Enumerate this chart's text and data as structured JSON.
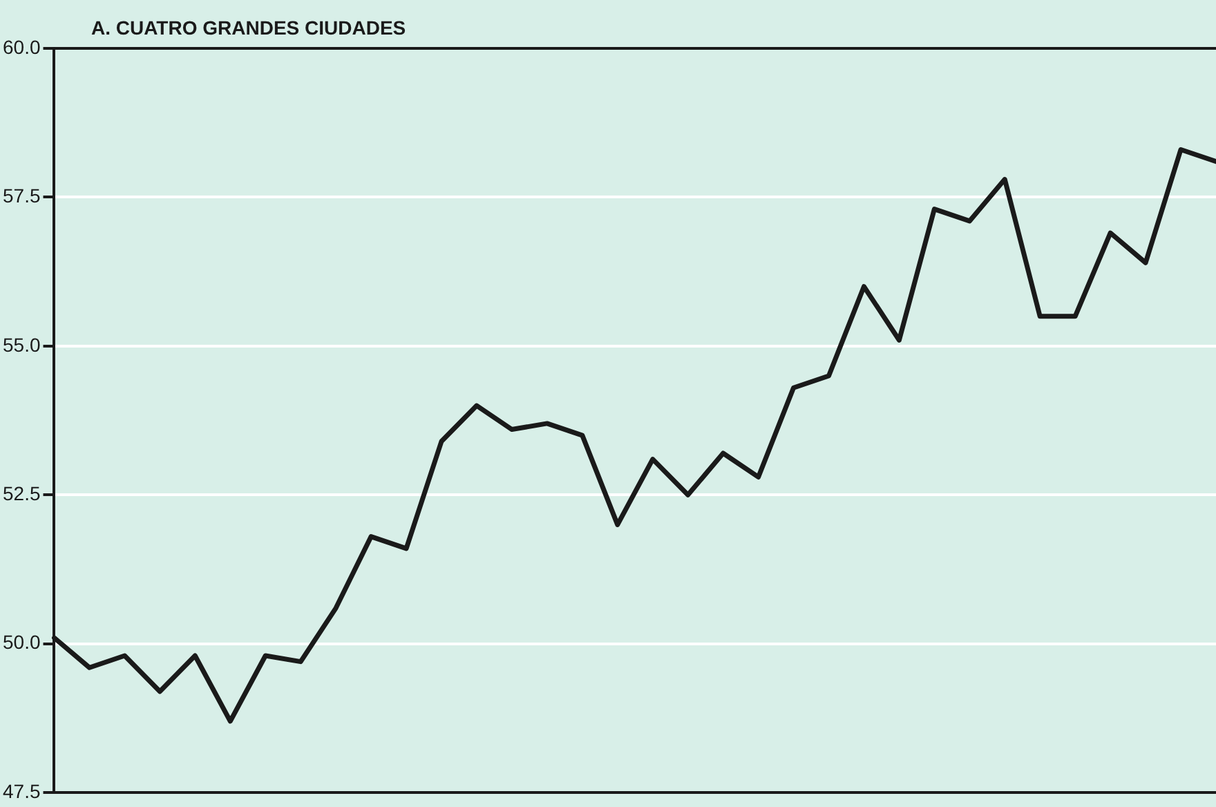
{
  "chart_data": {
    "type": "line",
    "title": "A. CUATRO GRANDES CIUDADES",
    "categories": [
      null,
      null,
      null,
      null,
      null,
      null,
      null,
      null,
      null,
      null,
      null,
      null,
      null,
      null,
      null,
      null,
      null,
      null,
      null,
      null,
      null,
      null,
      null,
      null,
      null,
      null,
      null,
      null,
      null,
      null,
      null,
      null,
      null,
      null
    ],
    "series": [
      {
        "color": "#1a1a1a",
        "values": [
          50.1,
          49.6,
          49.8,
          49.2,
          49.8,
          48.7,
          49.8,
          49.7,
          50.6,
          51.8,
          51.6,
          53.4,
          54.0,
          53.6,
          53.7,
          53.5,
          52.0,
          53.1,
          52.5,
          53.2,
          52.8,
          54.3,
          54.5,
          56.0,
          55.1,
          57.3,
          57.1,
          57.8,
          55.5,
          55.5,
          56.9,
          56.4,
          58.3,
          58.1
        ]
      }
    ],
    "ylim": [
      47.5,
      60
    ],
    "yticks": [
      {
        "value": 47.5,
        "label": "47.5"
      },
      {
        "value": 50,
        "label": "50.0"
      },
      {
        "value": 52.5,
        "label": "52.5"
      },
      {
        "value": 55,
        "label": "55.0"
      },
      {
        "value": 57.5,
        "label": "57.5"
      },
      {
        "value": 60,
        "label": "60.0"
      }
    ],
    "tick_labels": "y",
    "grid": "y",
    "marker": "none",
    "line_style": "solid",
    "legend": false
  }
}
